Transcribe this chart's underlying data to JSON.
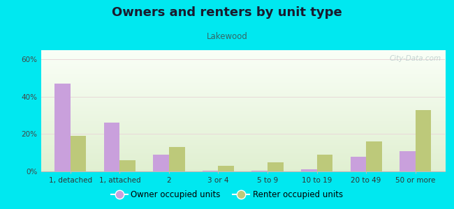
{
  "title": "Owners and renters by unit type",
  "subtitle": "Lakewood",
  "categories": [
    "1, detached",
    "1, attached",
    "2",
    "3 or 4",
    "5 to 9",
    "10 to 19",
    "20 to 49",
    "50 or more"
  ],
  "owner_values": [
    47,
    26,
    9,
    0.5,
    0.5,
    1,
    8,
    11
  ],
  "renter_values": [
    19,
    6,
    13,
    3,
    5,
    9,
    16,
    33
  ],
  "owner_color": "#c9a0dc",
  "renter_color": "#bdc97a",
  "background_outer": "#00e8f0",
  "ylim": [
    0,
    65
  ],
  "yticks": [
    0,
    20,
    40,
    60
  ],
  "ytick_labels": [
    "0%",
    "20%",
    "40%",
    "60%"
  ],
  "bar_width": 0.32,
  "legend_owner": "Owner occupied units",
  "legend_renter": "Renter occupied units",
  "title_fontsize": 13,
  "subtitle_fontsize": 8.5,
  "tick_fontsize": 7.5,
  "legend_fontsize": 8.5,
  "watermark": "City-Data.com"
}
